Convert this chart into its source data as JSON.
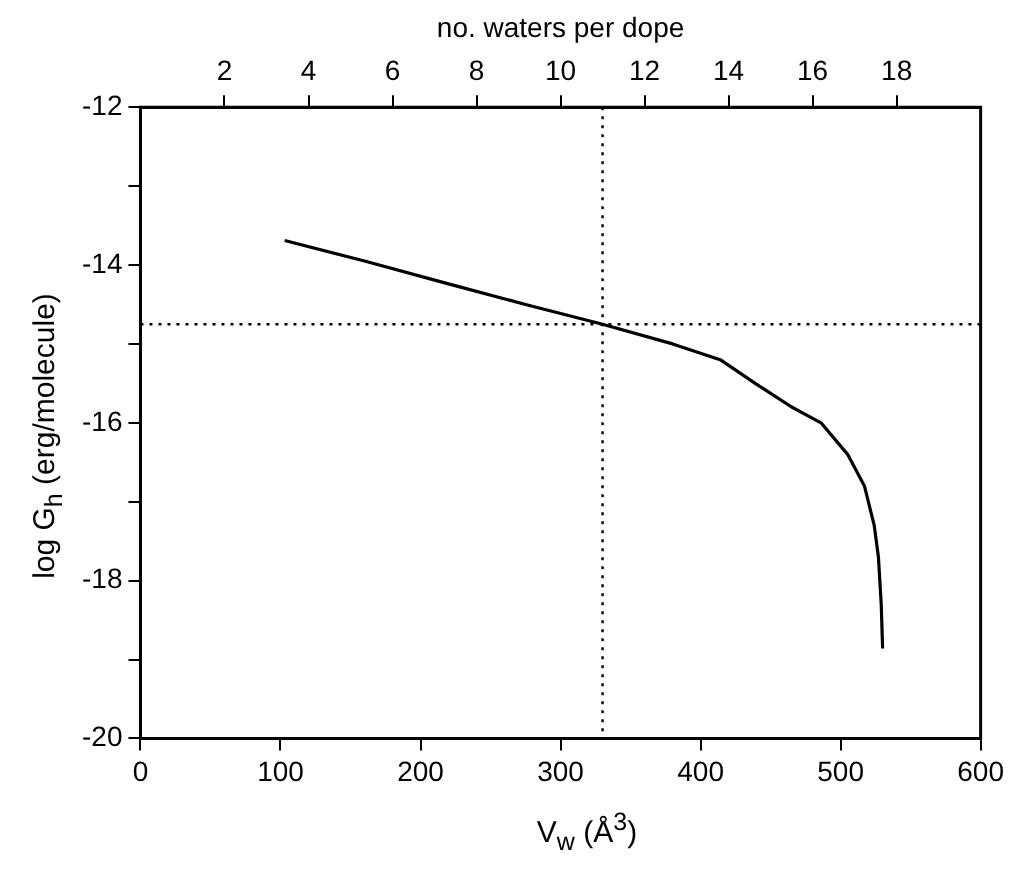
{
  "chart_data": {
    "type": "line",
    "xlabel": "V$_{w}$  (Å$^{3}$)",
    "ylabel": "log G$_{h}$  (erg/molecule)",
    "x2label": "no. waters per dope",
    "series": [
      {
        "color": "#000000",
        "x": [
          103,
          160,
          216,
          275,
          330,
          380,
          414,
          439,
          465,
          486,
          505,
          517,
          524,
          527,
          529,
          530
        ],
        "values": [
          -13.69,
          -13.95,
          -14.22,
          -14.5,
          -14.75,
          -15.0,
          -15.2,
          -15.5,
          -15.8,
          -16.0,
          -16.4,
          -16.8,
          -17.3,
          -17.7,
          -18.3,
          -18.86
        ]
      }
    ],
    "xlim": [
      0,
      600
    ],
    "xticks": [
      0,
      100,
      200,
      300,
      400,
      500,
      600
    ],
    "x2lim": [
      0,
      20
    ],
    "x2ticks": [
      2,
      4,
      6,
      8,
      10,
      12,
      14,
      16,
      18
    ],
    "ylim": [
      -20,
      -12
    ],
    "yticks": [
      -20,
      {
        "value": -19,
        "label": null
      },
      -18,
      {
        "value": -17,
        "label": null
      },
      -16,
      {
        "value": -15,
        "label": null
      },
      -14,
      {
        "value": -13,
        "label": null
      },
      -12
    ],
    "ref_lines": [
      {
        "axis": "x",
        "value": 330,
        "line_style": "dotted",
        "color": "#000000"
      },
      {
        "axis": "y",
        "value": -14.75,
        "line_style": "dotted",
        "color": "#000000"
      }
    ],
    "grid": false,
    "legend": false,
    "marker": "none",
    "line_style": "solid"
  }
}
